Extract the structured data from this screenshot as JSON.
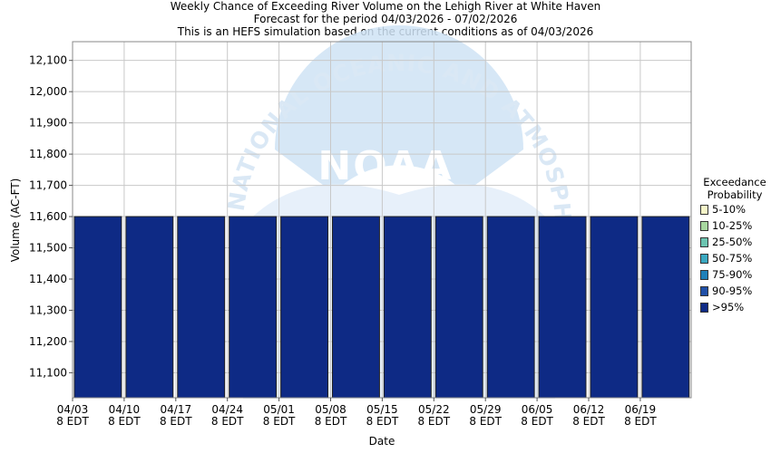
{
  "header": {
    "title": "Weekly Chance of Exceeding River Volume on the Lehigh River at White Haven",
    "subtitle": "Forecast for the period 04/03/2026 - 07/02/2026",
    "note": "This is an HEFS simulation based on the current conditions as of 04/03/2026"
  },
  "legend": {
    "title_line1": "Exceedance",
    "title_line2": "Probability",
    "items": [
      {
        "label": "5-10%",
        "color": "#f5f5c8"
      },
      {
        "label": "10-25%",
        "color": "#a8d8a0"
      },
      {
        "label": "25-50%",
        "color": "#6cc4b0"
      },
      {
        "label": "50-75%",
        "color": "#3aa8c0"
      },
      {
        "label": "75-90%",
        "color": "#2080b8"
      },
      {
        "label": "90-95%",
        "color": "#2050a8"
      },
      {
        "label": ">95%",
        "color": "#0e2a85"
      }
    ]
  },
  "watermark": {
    "logo_text": "NOAA",
    "ring_text": "NATIONAL OCEANIC AND ATMOSPHERIC ADMINISTRATION"
  },
  "chart_data": {
    "type": "bar",
    "xlabel": "Date",
    "ylabel": "Volume (AC-FT)",
    "ylim": [
      11020,
      12160
    ],
    "yticks": [
      11100,
      11200,
      11300,
      11400,
      11500,
      11600,
      11700,
      11800,
      11900,
      12000,
      12100
    ],
    "ytick_labels": [
      "11,100",
      "11,200",
      "11,300",
      "11,400",
      "11,500",
      "11,600",
      "11,700",
      "11,800",
      "11,900",
      "12,000",
      "12,100"
    ],
    "xtick_labels": [
      {
        "date": "04/03",
        "time": "8 EDT"
      },
      {
        "date": "04/10",
        "time": "8 EDT"
      },
      {
        "date": "04/17",
        "time": "8 EDT"
      },
      {
        "date": "04/24",
        "time": "8 EDT"
      },
      {
        "date": "05/01",
        "time": "8 EDT"
      },
      {
        "date": "05/08",
        "time": "8 EDT"
      },
      {
        "date": "05/15",
        "time": "8 EDT"
      },
      {
        "date": "05/22",
        "time": "8 EDT"
      },
      {
        "date": "05/29",
        "time": "8 EDT"
      },
      {
        "date": "06/05",
        "time": "8 EDT"
      },
      {
        "date": "06/12",
        "time": "8 EDT"
      },
      {
        "date": "06/19",
        "time": "8 EDT"
      }
    ],
    "series": [
      {
        "name": ">95%",
        "values": [
          11600,
          11600,
          11600,
          11600,
          11600,
          11600,
          11600,
          11600,
          11600,
          11600,
          11600,
          11600
        ]
      }
    ],
    "bar_color": "#0e2a85",
    "grid": true
  }
}
